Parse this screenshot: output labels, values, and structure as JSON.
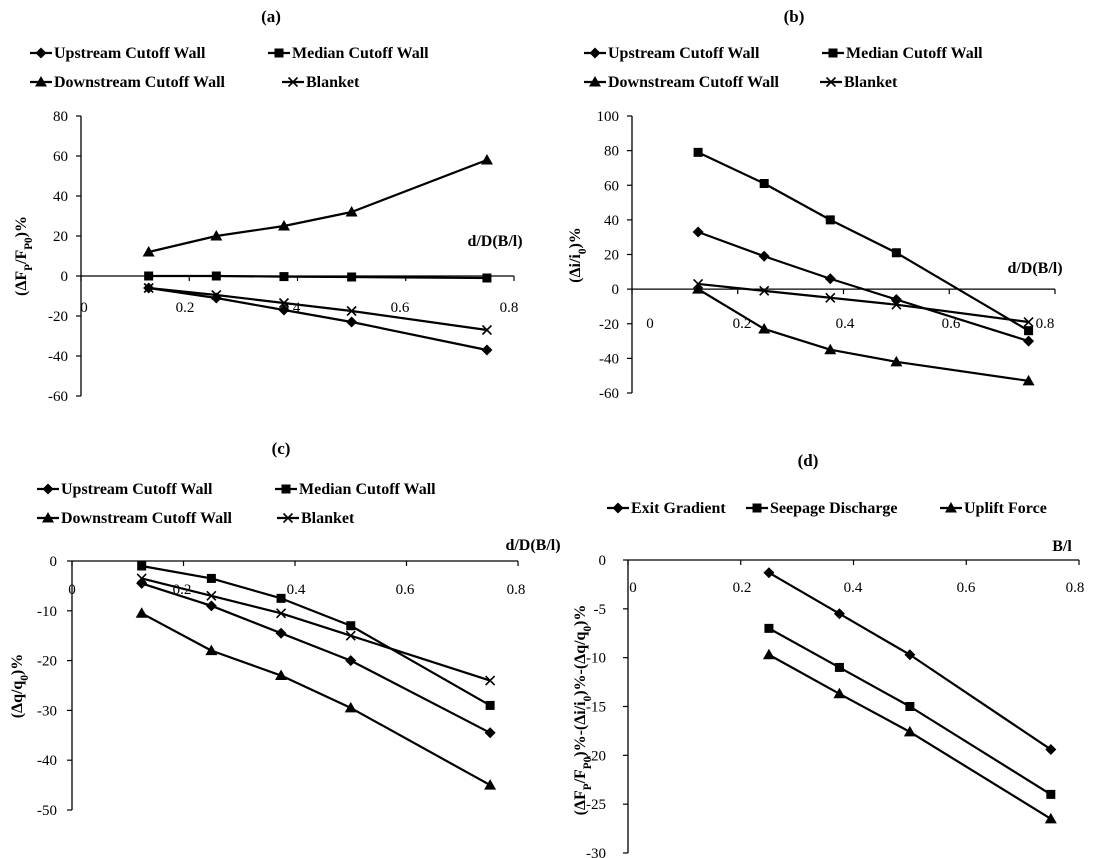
{
  "chart_data": [
    {
      "type": "line",
      "title": "(a)",
      "xlabel": "d/D(B/l)",
      "ylabel": "(ΔF_P/F_P0)%",
      "xlim": [
        0,
        0.8
      ],
      "ylim": [
        -60,
        80
      ],
      "x_ticks": [
        "0",
        "0.2",
        "0.4",
        "0.6",
        "0.8"
      ],
      "y_ticks": [
        "80",
        "60",
        "40",
        "20",
        "0",
        "-20",
        "-40",
        "-60"
      ],
      "legend_rows": [
        [
          "Upstream Cutoff Wall",
          "Median Cutoff Wall"
        ],
        [
          "Downstream Cutoff Wall",
          "Blanket"
        ]
      ],
      "series": [
        {
          "name": "Upstream Cutoff Wall",
          "marker": "diamond",
          "x": [
            0.125,
            0.25,
            0.375,
            0.5,
            0.75
          ],
          "values": [
            -6,
            -11,
            -17,
            -23,
            -37
          ]
        },
        {
          "name": "Median Cutoff Wall",
          "marker": "square",
          "x": [
            0.125,
            0.25,
            0.375,
            0.5,
            0.75
          ],
          "values": [
            0,
            0,
            -0.3,
            -0.5,
            -1
          ]
        },
        {
          "name": "Downstream Cutoff Wall",
          "marker": "triangle",
          "x": [
            0.125,
            0.25,
            0.375,
            0.5,
            0.75
          ],
          "values": [
            12,
            20,
            25,
            32,
            58
          ]
        },
        {
          "name": "Blanket",
          "marker": "x",
          "x": [
            0.125,
            0.25,
            0.375,
            0.5,
            0.75
          ],
          "values": [
            -6,
            -9.5,
            -13.5,
            -17.5,
            -27
          ]
        }
      ]
    },
    {
      "type": "line",
      "title": "(b)",
      "xlabel": "d/D(B/l)",
      "ylabel": "(Δi/i_0)%",
      "xlim": [
        0,
        0.8
      ],
      "ylim": [
        -60,
        100
      ],
      "x_ticks": [
        "0",
        "0.2",
        "0.4",
        "0.6",
        "0.8"
      ],
      "y_ticks": [
        "100",
        "80",
        "60",
        "40",
        "20",
        "0",
        "-20",
        "-40",
        "-60"
      ],
      "legend_rows": [
        [
          "Upstream Cutoff Wall",
          "Median Cutoff Wall"
        ],
        [
          "Downstream Cutoff Wall",
          "Blanket"
        ]
      ],
      "series": [
        {
          "name": "Upstream Cutoff Wall",
          "marker": "diamond",
          "x": [
            0.125,
            0.25,
            0.375,
            0.5,
            0.75
          ],
          "values": [
            33,
            19,
            6,
            -6,
            -30
          ]
        },
        {
          "name": "Median Cutoff Wall",
          "marker": "square",
          "x": [
            0.125,
            0.25,
            0.375,
            0.5,
            0.75
          ],
          "values": [
            79,
            61,
            40,
            21,
            -24
          ]
        },
        {
          "name": "Downstream Cutoff Wall",
          "marker": "triangle",
          "x": [
            0.125,
            0.25,
            0.375,
            0.5,
            0.75
          ],
          "values": [
            0,
            -23,
            -35,
            -42,
            -53
          ]
        },
        {
          "name": "Blanket",
          "marker": "x",
          "x": [
            0.125,
            0.25,
            0.375,
            0.5,
            0.75
          ],
          "values": [
            3,
            -1,
            -5,
            -9,
            -19
          ]
        }
      ]
    },
    {
      "type": "line",
      "title": "(c)",
      "xlabel": "d/D(B/l)",
      "ylabel": "(Δq/q_0)%",
      "xlim": [
        0,
        0.8
      ],
      "ylim": [
        -50,
        0
      ],
      "x_ticks": [
        "0",
        "0.2",
        "0.4",
        "0.6",
        "0.8"
      ],
      "y_ticks": [
        "0",
        "-10",
        "-20",
        "-30",
        "-40",
        "-50"
      ],
      "legend_rows": [
        [
          "Upstream Cutoff Wall",
          "Median Cutoff Wall"
        ],
        [
          "Downstream Cutoff Wall",
          "Blanket"
        ]
      ],
      "series": [
        {
          "name": "Upstream Cutoff Wall",
          "marker": "diamond",
          "x": [
            0.125,
            0.25,
            0.375,
            0.5,
            0.75
          ],
          "values": [
            -4.5,
            -9,
            -14.5,
            -20,
            -34.5
          ]
        },
        {
          "name": "Median Cutoff Wall",
          "marker": "square",
          "x": [
            0.125,
            0.25,
            0.375,
            0.5,
            0.75
          ],
          "values": [
            -1,
            -3.5,
            -7.5,
            -13,
            -29
          ]
        },
        {
          "name": "Downstream Cutoff Wall",
          "marker": "triangle",
          "x": [
            0.125,
            0.25,
            0.375,
            0.5,
            0.75
          ],
          "values": [
            -10.5,
            -18,
            -23,
            -29.5,
            -45
          ]
        },
        {
          "name": "Blanket",
          "marker": "x",
          "x": [
            0.125,
            0.25,
            0.375,
            0.5,
            0.75
          ],
          "values": [
            -3.5,
            -7,
            -10.5,
            -15,
            -24
          ]
        }
      ]
    },
    {
      "type": "line",
      "title": "(d)",
      "xlabel": "B/l",
      "ylabel": "(ΔF_P/F_P0)%-(Δi/i_0)%-(Δq/q_0)%",
      "xlim": [
        0,
        0.8
      ],
      "ylim": [
        -30,
        0
      ],
      "x_ticks": [
        "0",
        "0.2",
        "0.4",
        "0.6",
        "0.8"
      ],
      "y_ticks": [
        "0",
        "-5",
        "-10",
        "-15",
        "-20",
        "-25",
        "-30"
      ],
      "legend_rows": [
        [
          "Exit Gradient",
          "Seepage Discharge",
          "Uplift Force"
        ]
      ],
      "series": [
        {
          "name": "Exit Gradient",
          "marker": "diamond",
          "x": [
            0.25,
            0.375,
            0.5,
            0.75
          ],
          "values": [
            -1.3,
            -5.5,
            -9.7,
            -19.4
          ]
        },
        {
          "name": "Seepage Discharge",
          "marker": "square",
          "x": [
            0.25,
            0.375,
            0.5,
            0.75
          ],
          "values": [
            -7,
            -11,
            -15,
            -24
          ]
        },
        {
          "name": "Uplift Force",
          "marker": "triangle",
          "x": [
            0.25,
            0.375,
            0.5,
            0.75
          ],
          "values": [
            -9.7,
            -13.7,
            -17.6,
            -26.5
          ]
        }
      ]
    }
  ]
}
